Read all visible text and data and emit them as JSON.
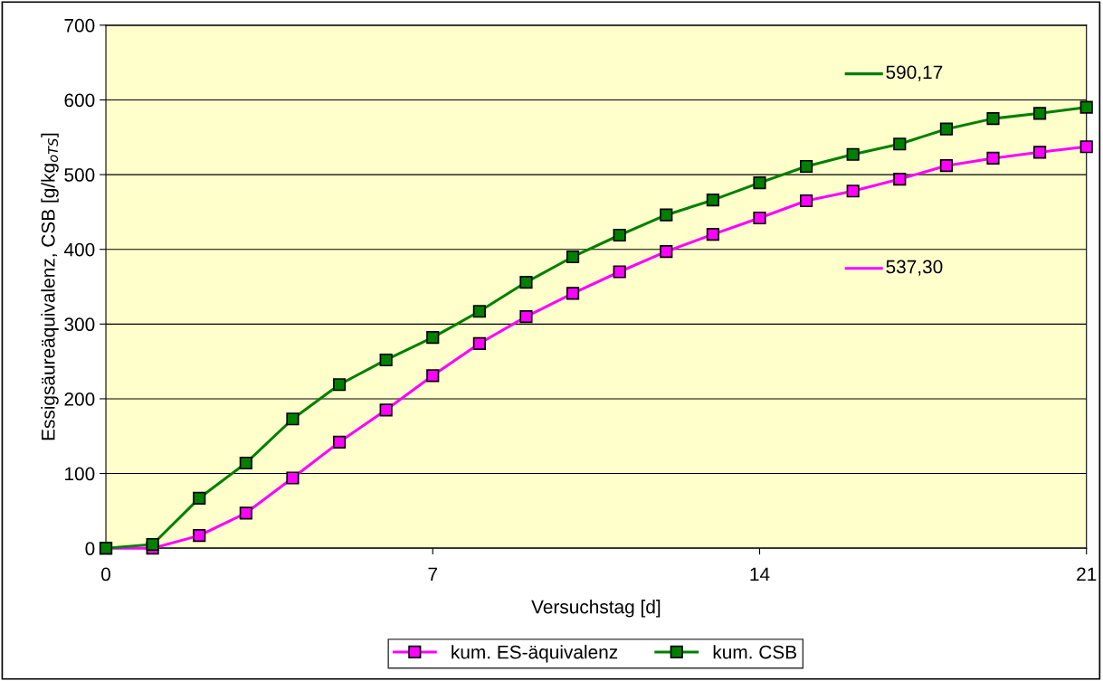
{
  "chart_data": {
    "type": "line",
    "xlabel": "Versuchstag [d]",
    "ylabel": "Essigsäureäquivalenz, CSB [g/kg$_{oTS}$]",
    "x": [
      0,
      1,
      2,
      3,
      4,
      5,
      6,
      7,
      8,
      9,
      10,
      11,
      12,
      13,
      14,
      15,
      16,
      17,
      18,
      19,
      20,
      21
    ],
    "series": [
      {
        "name": "kum. ES-äquivalenz",
        "color": "#ff00ff",
        "values": [
          0,
          0,
          17,
          47,
          94,
          142,
          185,
          231,
          274,
          310,
          341,
          370,
          397,
          420,
          442,
          465,
          478,
          494,
          512,
          522,
          530,
          537.3
        ]
      },
      {
        "name": "kum. CSB",
        "color": "#008000",
        "values": [
          0,
          5,
          67,
          114,
          173,
          219,
          252,
          282,
          317,
          356,
          390,
          419,
          446,
          466,
          489,
          511,
          527,
          541,
          561,
          575,
          582,
          590.17
        ]
      }
    ],
    "annotations": [
      "590,17",
      "537,30"
    ],
    "xlim": [
      0,
      21
    ],
    "xticks": [
      0,
      7,
      14,
      21
    ],
    "ylim": [
      0,
      700
    ],
    "yticks": [
      0,
      100,
      200,
      300,
      400,
      500,
      600,
      700
    ],
    "grid": "y",
    "legend": "bottom",
    "marker": "square",
    "line_style": "solid"
  }
}
